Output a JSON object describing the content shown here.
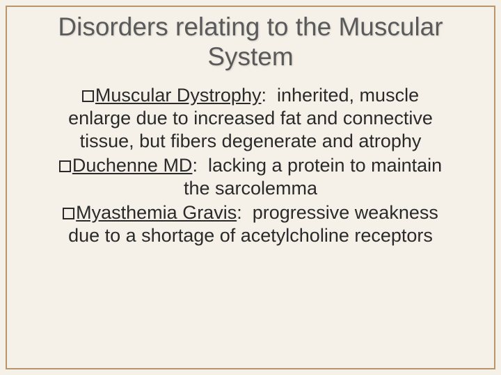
{
  "title": "Disorders relating to the Muscular System",
  "items": [
    {
      "term": "Muscular Dystrophy",
      "definition": "inherited, muscle enlarge due to increased fat and connective tissue, but fibers degenerate and atrophy"
    },
    {
      "term": "Duchenne MD",
      "definition": "lacking a protein to maintain the sarcolemma"
    },
    {
      "term": "Myasthemia Gravis",
      "definition": "progressive weakness due to a shortage of acetylcholine receptors"
    }
  ],
  "colors": {
    "background": "#f5f1e8",
    "border": "#b8956a",
    "title_text": "#5a5a5a",
    "body_text": "#2a2a2a"
  },
  "typography": {
    "title_fontsize": 37,
    "body_fontsize": 27,
    "font_family": "Arial"
  }
}
